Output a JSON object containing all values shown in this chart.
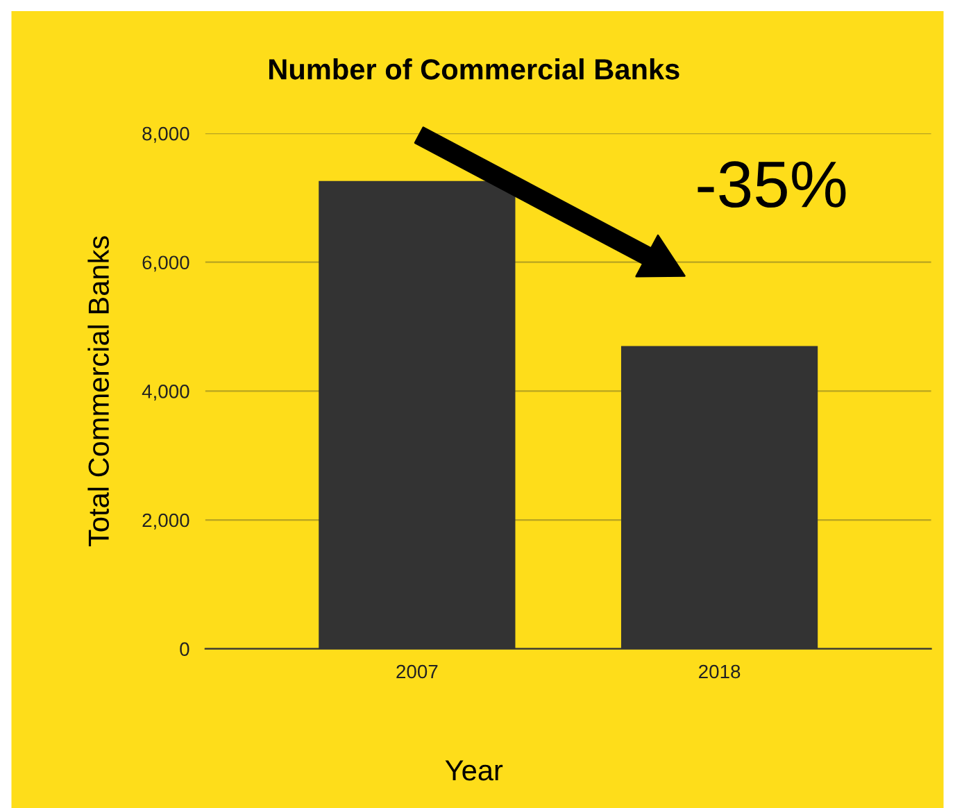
{
  "chart_data": {
    "type": "bar",
    "title": "Number of Commercial Banks",
    "xlabel": "Year",
    "ylabel": "Total Commercial Banks",
    "categories": [
      "2007",
      "2018"
    ],
    "values": [
      7260,
      4700
    ],
    "color": "#333333",
    "ylim": [
      0,
      8000
    ],
    "yticks": [
      {
        "value": 0,
        "label": "0"
      },
      {
        "value": 2000,
        "label": "2,000"
      },
      {
        "value": 4000,
        "label": "4,000"
      },
      {
        "value": 6000,
        "label": "6,000"
      },
      {
        "value": 8000,
        "label": "8,000"
      }
    ],
    "grid": "y",
    "annotations": [
      "-35%"
    ]
  }
}
